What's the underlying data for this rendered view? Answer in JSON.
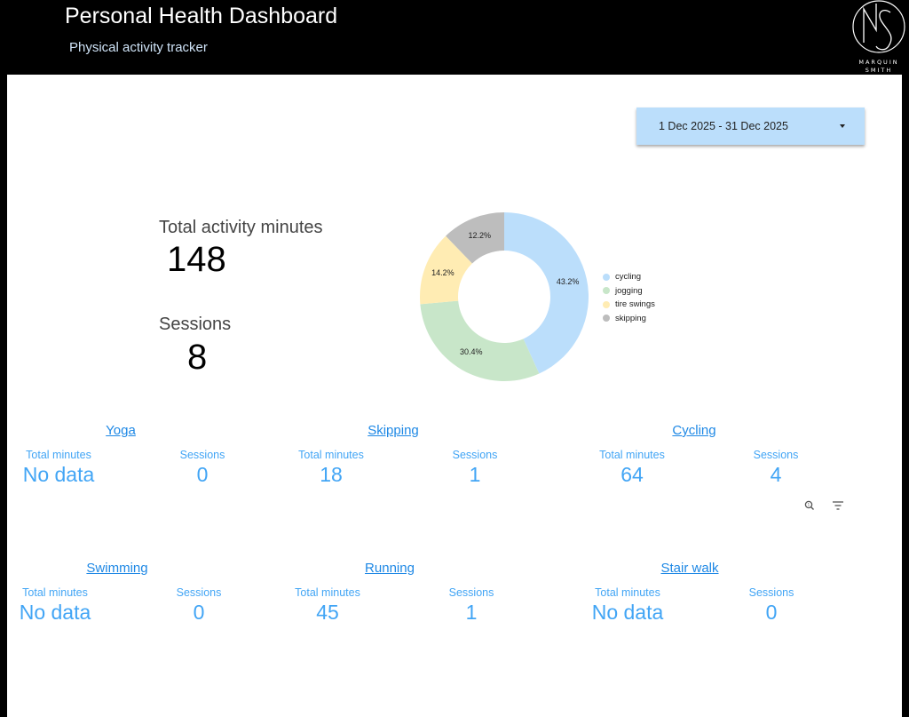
{
  "header": {
    "title": "Personal Health Dashboard",
    "subtitle": "Physical activity tracker",
    "logo": {
      "monogram": "MS",
      "line1": "MARQUIN",
      "line2": "SMITH"
    }
  },
  "date_range": {
    "label": "1 Dec 2025 - 31 Dec 2025"
  },
  "kpis": {
    "total_minutes_label": "Total activity minutes",
    "total_minutes_value": "148",
    "sessions_label": "Sessions",
    "sessions_value": "8"
  },
  "chart_data": {
    "type": "pie",
    "donut": true,
    "categories": [
      "cycling",
      "jogging",
      "tire swings",
      "skipping"
    ],
    "values": [
      43.2,
      30.4,
      14.2,
      12.2
    ],
    "labels": [
      "43.2%",
      "30.4%",
      "14.2%",
      "12.2%"
    ],
    "colors": [
      "#bbdefb",
      "#c8e6c9",
      "#ffecb3",
      "#bdbdbd"
    ],
    "legend_position": "right"
  },
  "activities": [
    {
      "name": "Yoga",
      "minutes_label": "Total minutes",
      "minutes": "No data",
      "sessions_label": "Sessions",
      "sessions": "0"
    },
    {
      "name": "Skipping",
      "minutes_label": "Total minutes",
      "minutes": "18",
      "sessions_label": "Sessions",
      "sessions": "1"
    },
    {
      "name": "Cycling",
      "minutes_label": "Total minutes",
      "minutes": "64",
      "sessions_label": "Sessions",
      "sessions": "4"
    },
    {
      "name": "Swimming",
      "minutes_label": "Total minutes",
      "minutes": "No data",
      "sessions_label": "Sessions",
      "sessions": "0"
    },
    {
      "name": "Running",
      "minutes_label": "Total minutes",
      "minutes": "45",
      "sessions_label": "Sessions",
      "sessions": "1"
    },
    {
      "name": "Stair walk",
      "minutes_label": "Total minutes",
      "minutes": "No data",
      "sessions_label": "Sessions",
      "sessions": "0"
    }
  ],
  "toolbar_icons": [
    "zoom-icon",
    "filter-icon"
  ],
  "colors": {
    "accent_blue": "#42a5f5",
    "link_blue": "#1e88e5",
    "header_bg": "#000000"
  }
}
